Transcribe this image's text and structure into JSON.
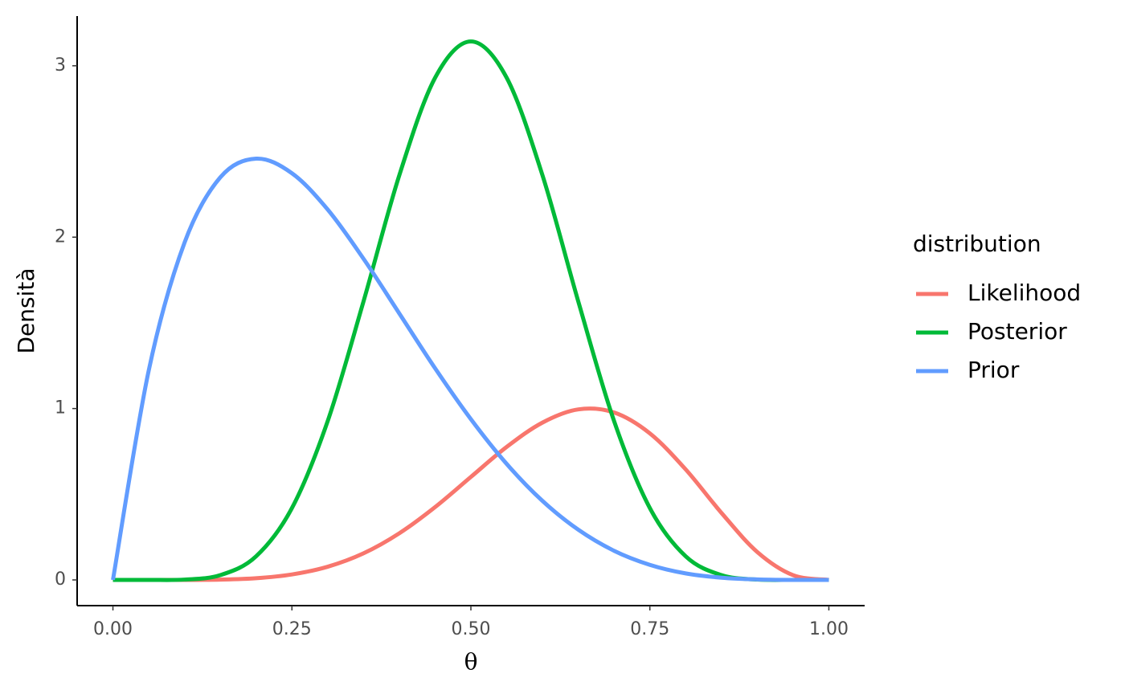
{
  "chart_data": {
    "type": "line",
    "x_label": "θ",
    "y_label": "Densità",
    "legend_title": "distribution",
    "x": [
      0,
      0.05,
      0.1,
      0.15,
      0.2,
      0.25,
      0.3,
      0.35,
      0.4,
      0.45,
      0.5,
      0.55,
      0.6,
      0.65,
      0.7,
      0.75,
      0.8,
      0.85,
      0.9,
      0.95,
      1
    ],
    "series": [
      {
        "name": "Likelihood",
        "color": "#F8766D",
        "values": [
          0,
          0,
          0,
          0.002,
          0.01,
          0.032,
          0.077,
          0.155,
          0.272,
          0.425,
          0.601,
          0.776,
          0.918,
          0.995,
          0.977,
          0.855,
          0.645,
          0.391,
          0.163,
          0.028,
          0
        ]
      },
      {
        "name": "Posterior",
        "color": "#00BA38",
        "values": [
          0,
          0,
          0.002,
          0.028,
          0.138,
          0.419,
          0.927,
          1.625,
          2.361,
          2.93,
          3.142,
          2.93,
          2.361,
          1.625,
          0.927,
          0.419,
          0.138,
          0.028,
          0.002,
          0,
          0
        ]
      },
      {
        "name": "Prior",
        "color": "#619CFF",
        "values": [
          0,
          1.222,
          1.968,
          2.349,
          2.458,
          2.373,
          2.161,
          1.874,
          1.555,
          1.235,
          0.938,
          0.677,
          0.461,
          0.293,
          0.17,
          0.088,
          0.038,
          0.013,
          0.003,
          0,
          0
        ]
      }
    ],
    "xlim": [
      -0.05,
      1.05
    ],
    "ylim": [
      -0.15,
      3.29
    ],
    "xticks": [
      {
        "value": 0,
        "label": "0.00"
      },
      {
        "value": 0.25,
        "label": "0.25"
      },
      {
        "value": 0.5,
        "label": "0.50"
      },
      {
        "value": 0.75,
        "label": "0.75"
      },
      {
        "value": 1,
        "label": "1.00"
      }
    ],
    "yticks": [
      0,
      1,
      2,
      3
    ],
    "grid": false,
    "legend_position": "right"
  }
}
